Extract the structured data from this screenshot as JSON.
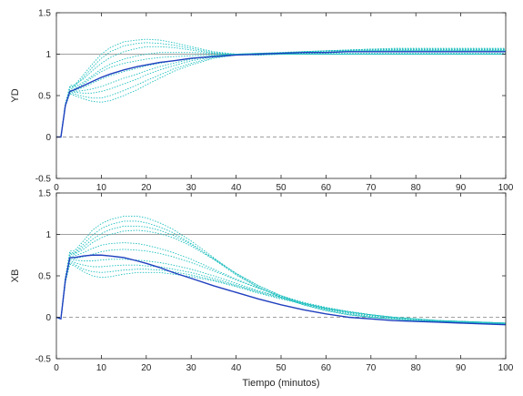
{
  "chart_data": [
    {
      "type": "line",
      "ylabel": "YD",
      "xlabel": "",
      "xlim": [
        0,
        100
      ],
      "ylim": [
        -0.5,
        1.5
      ],
      "yticks": [
        "-0.5",
        "0",
        "0.5",
        "1",
        "1.5"
      ],
      "xticks": [
        "0",
        "10",
        "20",
        "30",
        "40",
        "50",
        "60",
        "70",
        "80",
        "90",
        "100"
      ],
      "reference_lines": [
        {
          "y": 1,
          "style": "solid",
          "color": "#a0a0a0"
        },
        {
          "y": 0,
          "style": "dashed",
          "color": "#a0a0a0"
        }
      ],
      "colors": {
        "nominal": "#1f3fbf",
        "ensemble": "#1fbfbf"
      },
      "x": [
        0,
        1,
        2,
        3,
        4,
        6,
        8,
        10,
        12,
        15,
        18,
        20,
        23,
        26,
        30,
        35,
        40,
        45,
        50,
        55,
        60,
        65,
        70,
        75,
        80,
        85,
        90,
        95,
        100
      ],
      "series": [
        {
          "style": "solid",
          "color": "#1f3fbf",
          "values": [
            0,
            0,
            0.38,
            0.55,
            0.57,
            0.62,
            0.67,
            0.72,
            0.76,
            0.81,
            0.85,
            0.87,
            0.9,
            0.92,
            0.95,
            0.97,
            0.99,
            1.0,
            1.01,
            1.02,
            1.02,
            1.03,
            1.03,
            1.03,
            1.03,
            1.03,
            1.03,
            1.03,
            1.03
          ]
        },
        {
          "style": "dotted",
          "color": "#1fbfbf",
          "values": [
            0,
            0,
            0.4,
            0.6,
            0.62,
            0.75,
            0.88,
            1.0,
            1.08,
            1.15,
            1.17,
            1.18,
            1.17,
            1.14,
            1.09,
            1.03,
            1.0,
            0.99,
            1.0,
            1.01,
            1.02,
            1.03,
            1.04,
            1.04,
            1.04,
            1.04,
            1.04,
            1.04,
            1.04
          ]
        },
        {
          "style": "dotted",
          "color": "#1fbfbf",
          "values": [
            0,
            0,
            0.4,
            0.6,
            0.61,
            0.72,
            0.84,
            0.95,
            1.03,
            1.1,
            1.13,
            1.14,
            1.13,
            1.11,
            1.07,
            1.02,
            1.0,
            0.99,
            1.0,
            1.02,
            1.03,
            1.04,
            1.05,
            1.05,
            1.05,
            1.05,
            1.05,
            1.05,
            1.05
          ]
        },
        {
          "style": "dotted",
          "color": "#1fbfbf",
          "values": [
            0,
            0,
            0.4,
            0.62,
            0.63,
            0.7,
            0.8,
            0.89,
            0.96,
            1.03,
            1.07,
            1.09,
            1.09,
            1.08,
            1.05,
            1.01,
            0.99,
            0.99,
            1.0,
            1.02,
            1.04,
            1.05,
            1.06,
            1.06,
            1.06,
            1.06,
            1.06,
            1.06,
            1.06
          ]
        },
        {
          "style": "dotted",
          "color": "#1fbfbf",
          "values": [
            0,
            0,
            0.4,
            0.6,
            0.6,
            0.66,
            0.74,
            0.82,
            0.88,
            0.94,
            0.98,
            1.0,
            1.02,
            1.02,
            1.02,
            1.01,
            1.0,
            1.0,
            1.01,
            1.03,
            1.04,
            1.05,
            1.06,
            1.07,
            1.07,
            1.07,
            1.07,
            1.07,
            1.07
          ]
        },
        {
          "style": "dotted",
          "color": "#1fbfbf",
          "values": [
            0,
            0,
            0.38,
            0.56,
            0.56,
            0.6,
            0.65,
            0.7,
            0.74,
            0.79,
            0.83,
            0.86,
            0.89,
            0.92,
            0.95,
            0.98,
            1.0,
            1.01,
            1.02,
            1.03,
            1.04,
            1.04,
            1.04,
            1.04,
            1.04,
            1.04,
            1.04,
            1.04,
            1.04
          ]
        },
        {
          "style": "dotted",
          "color": "#1fbfbf",
          "values": [
            0,
            0,
            0.38,
            0.55,
            0.55,
            0.56,
            0.58,
            0.61,
            0.65,
            0.71,
            0.76,
            0.8,
            0.85,
            0.89,
            0.94,
            0.98,
            1.0,
            1.01,
            1.01,
            1.01,
            1.01,
            1.01,
            1.01,
            1.01,
            1.01,
            1.01,
            1.01,
            1.01,
            1.01
          ]
        },
        {
          "style": "dotted",
          "color": "#1fbfbf",
          "values": [
            0,
            0,
            0.38,
            0.54,
            0.54,
            0.53,
            0.53,
            0.55,
            0.58,
            0.64,
            0.7,
            0.75,
            0.81,
            0.86,
            0.92,
            0.97,
            0.99,
            1.0,
            1.0,
            1.0,
            1.0,
            1.0,
            1.0,
            1.0,
            1.0,
            1.0,
            1.0,
            1.0,
            1.0
          ]
        },
        {
          "style": "dotted",
          "color": "#1fbfbf",
          "values": [
            0,
            0,
            0.38,
            0.53,
            0.52,
            0.49,
            0.47,
            0.47,
            0.5,
            0.56,
            0.63,
            0.68,
            0.75,
            0.82,
            0.89,
            0.96,
            0.99,
            1.0,
            1.0,
            1.0,
            1.0,
            1.0,
            1.0,
            1.0,
            1.0,
            1.0,
            1.0,
            1.0,
            1.0
          ]
        },
        {
          "style": "dotted",
          "color": "#1fbfbf",
          "values": [
            0,
            0,
            0.37,
            0.52,
            0.5,
            0.46,
            0.43,
            0.42,
            0.44,
            0.5,
            0.57,
            0.63,
            0.71,
            0.79,
            0.87,
            0.95,
            0.99,
            1.0,
            1.0,
            1.0,
            1.0,
            1.0,
            1.0,
            1.0,
            1.0,
            1.0,
            1.0,
            1.0,
            1.0
          ]
        },
        {
          "style": "dotted",
          "color": "#1fbfbf",
          "values": [
            0,
            0,
            0.39,
            0.58,
            0.58,
            0.64,
            0.72,
            0.79,
            0.84,
            0.89,
            0.92,
            0.94,
            0.96,
            0.97,
            0.98,
            0.99,
            1.0,
            1.01,
            1.02,
            1.03,
            1.04,
            1.05,
            1.06,
            1.06,
            1.06,
            1.06,
            1.06,
            1.06,
            1.06
          ]
        }
      ]
    },
    {
      "type": "line",
      "ylabel": "XB",
      "xlabel": "Tiempo (minutos)",
      "xlim": [
        0,
        100
      ],
      "ylim": [
        -0.5,
        1.5
      ],
      "yticks": [
        "-0.5",
        "0",
        "0.5",
        "1",
        "1.5"
      ],
      "xticks": [
        "0",
        "10",
        "20",
        "30",
        "40",
        "50",
        "60",
        "70",
        "80",
        "90",
        "100"
      ],
      "reference_lines": [
        {
          "y": 1,
          "style": "solid",
          "color": "#a0a0a0"
        },
        {
          "y": 0,
          "style": "dashed",
          "color": "#a0a0a0"
        }
      ],
      "colors": {
        "nominal": "#1f3fbf",
        "ensemble": "#1fbfbf"
      },
      "x": [
        0,
        1,
        2,
        3,
        4,
        6,
        8,
        10,
        12,
        15,
        18,
        20,
        23,
        26,
        30,
        35,
        40,
        45,
        50,
        55,
        60,
        65,
        70,
        75,
        80,
        85,
        90,
        95,
        100
      ],
      "series": [
        {
          "style": "solid",
          "color": "#1f3fbf",
          "values": [
            0,
            -0.02,
            0.45,
            0.72,
            0.72,
            0.74,
            0.75,
            0.75,
            0.74,
            0.72,
            0.68,
            0.65,
            0.6,
            0.54,
            0.47,
            0.38,
            0.3,
            0.22,
            0.15,
            0.09,
            0.04,
            0.0,
            -0.02,
            -0.04,
            -0.05,
            -0.06,
            -0.07,
            -0.08,
            -0.09
          ]
        },
        {
          "style": "dotted",
          "color": "#1fbfbf",
          "values": [
            0,
            -0.02,
            0.48,
            0.8,
            0.8,
            0.92,
            1.05,
            1.13,
            1.18,
            1.22,
            1.22,
            1.2,
            1.14,
            1.06,
            0.92,
            0.72,
            0.52,
            0.36,
            0.24,
            0.15,
            0.08,
            0.03,
            0.0,
            -0.02,
            -0.04,
            -0.05,
            -0.06,
            -0.07,
            -0.08
          ]
        },
        {
          "style": "dotted",
          "color": "#1fbfbf",
          "values": [
            0,
            -0.02,
            0.48,
            0.78,
            0.78,
            0.88,
            0.99,
            1.07,
            1.12,
            1.16,
            1.16,
            1.14,
            1.09,
            1.02,
            0.89,
            0.7,
            0.51,
            0.36,
            0.24,
            0.15,
            0.08,
            0.03,
            0.0,
            -0.02,
            -0.04,
            -0.05,
            -0.06,
            -0.07,
            -0.08
          ]
        },
        {
          "style": "dotted",
          "color": "#1fbfbf",
          "values": [
            0,
            -0.02,
            0.47,
            0.76,
            0.76,
            0.82,
            0.9,
            0.96,
            1.0,
            1.04,
            1.05,
            1.04,
            1.01,
            0.96,
            0.86,
            0.7,
            0.53,
            0.38,
            0.26,
            0.17,
            0.1,
            0.05,
            0.01,
            -0.02,
            -0.04,
            -0.05,
            -0.06,
            -0.07,
            -0.08
          ]
        },
        {
          "style": "dotted",
          "color": "#1fbfbf",
          "values": [
            0,
            -0.02,
            0.46,
            0.74,
            0.74,
            0.78,
            0.83,
            0.87,
            0.89,
            0.9,
            0.89,
            0.87,
            0.83,
            0.78,
            0.7,
            0.58,
            0.46,
            0.35,
            0.25,
            0.17,
            0.11,
            0.06,
            0.02,
            -0.01,
            -0.03,
            -0.05,
            -0.06,
            -0.07,
            -0.08
          ]
        },
        {
          "style": "dotted",
          "color": "#1fbfbf",
          "values": [
            0,
            -0.02,
            0.45,
            0.72,
            0.71,
            0.73,
            0.76,
            0.79,
            0.81,
            0.82,
            0.81,
            0.8,
            0.77,
            0.73,
            0.66,
            0.56,
            0.45,
            0.35,
            0.26,
            0.18,
            0.12,
            0.07,
            0.03,
            0.0,
            -0.02,
            -0.04,
            -0.05,
            -0.06,
            -0.07
          ]
        },
        {
          "style": "dotted",
          "color": "#1fbfbf",
          "values": [
            0,
            -0.02,
            0.44,
            0.7,
            0.69,
            0.68,
            0.68,
            0.69,
            0.7,
            0.7,
            0.69,
            0.68,
            0.66,
            0.63,
            0.58,
            0.5,
            0.41,
            0.32,
            0.24,
            0.17,
            0.11,
            0.07,
            0.03,
            0.0,
            -0.02,
            -0.04,
            -0.05,
            -0.06,
            -0.07
          ]
        },
        {
          "style": "dotted",
          "color": "#1fbfbf",
          "values": [
            0,
            -0.02,
            0.43,
            0.68,
            0.66,
            0.63,
            0.61,
            0.61,
            0.62,
            0.63,
            0.63,
            0.62,
            0.61,
            0.58,
            0.54,
            0.47,
            0.39,
            0.31,
            0.24,
            0.17,
            0.11,
            0.07,
            0.03,
            0.0,
            -0.02,
            -0.04,
            -0.05,
            -0.06,
            -0.07
          ]
        },
        {
          "style": "dotted",
          "color": "#1fbfbf",
          "values": [
            0,
            -0.02,
            0.42,
            0.66,
            0.64,
            0.58,
            0.55,
            0.54,
            0.55,
            0.57,
            0.58,
            0.58,
            0.57,
            0.55,
            0.51,
            0.45,
            0.38,
            0.3,
            0.23,
            0.16,
            0.11,
            0.06,
            0.03,
            0.0,
            -0.02,
            -0.04,
            -0.05,
            -0.06,
            -0.07
          ]
        },
        {
          "style": "dotted",
          "color": "#1fbfbf",
          "values": [
            0,
            -0.02,
            0.42,
            0.64,
            0.62,
            0.55,
            0.5,
            0.48,
            0.49,
            0.52,
            0.54,
            0.54,
            0.54,
            0.52,
            0.49,
            0.44,
            0.37,
            0.29,
            0.22,
            0.16,
            0.1,
            0.06,
            0.03,
            0.0,
            -0.02,
            -0.04,
            -0.05,
            -0.06,
            -0.07
          ]
        },
        {
          "style": "dotted",
          "color": "#1fbfbf",
          "values": [
            0,
            -0.02,
            0.47,
            0.77,
            0.77,
            0.85,
            0.94,
            1.01,
            1.06,
            1.1,
            1.1,
            1.09,
            1.05,
            0.99,
            0.88,
            0.71,
            0.53,
            0.38,
            0.26,
            0.16,
            0.09,
            0.04,
            0.0,
            -0.02,
            -0.04,
            -0.05,
            -0.06,
            -0.07,
            -0.08
          ]
        }
      ]
    }
  ]
}
